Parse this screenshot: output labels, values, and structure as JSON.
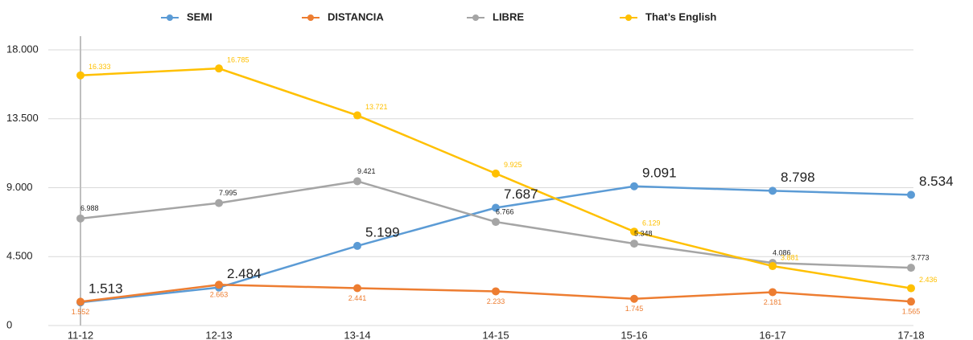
{
  "chart_data": {
    "type": "line",
    "categories": [
      "11-12",
      "12-13",
      "13-14",
      "14-15",
      "15-16",
      "16-17",
      "17-18"
    ],
    "series": [
      {
        "name": "SEMI",
        "color": "#5b9bd5",
        "values": [
          1513,
          2484,
          5199,
          7687,
          9091,
          8798,
          8534
        ],
        "value_labels": [
          "1.513",
          "2.484",
          "5.199",
          "7.687",
          "9.091",
          "8.798",
          "8.534"
        ]
      },
      {
        "name": "DISTANCIA",
        "color": "#ed7d31",
        "values": [
          1552,
          2663,
          2441,
          2233,
          1745,
          2181,
          1565
        ],
        "value_labels": [
          "1.552",
          "2.663",
          "2.441",
          "2.233",
          "1.745",
          "2.181",
          "1.565"
        ]
      },
      {
        "name": "LIBRE",
        "color": "#a5a5a5",
        "values": [
          6988,
          7995,
          9421,
          6766,
          5348,
          4086,
          3773
        ],
        "value_labels": [
          "6.988",
          "7.995",
          "9.421",
          "6.766",
          "5.348",
          "4.086",
          "3.773"
        ]
      },
      {
        "name": "That’s English",
        "color": "#ffc000",
        "values": [
          16333,
          16785,
          13721,
          9925,
          6129,
          3881,
          2436
        ],
        "value_labels": [
          "16.333",
          "16.785",
          "13.721",
          "9.925",
          "6.129",
          "3.881",
          "2.436"
        ]
      }
    ],
    "ylim": [
      0,
      18000
    ],
    "yticks": [
      0,
      {
        "value": 4500,
        "label": "4.500"
      },
      {
        "value": 9000,
        "label": "9.000"
      },
      {
        "value": 13500,
        "label": "13.500"
      },
      {
        "value": 18000,
        "label": "18.000"
      }
    ],
    "grid": true,
    "legend": "top"
  }
}
